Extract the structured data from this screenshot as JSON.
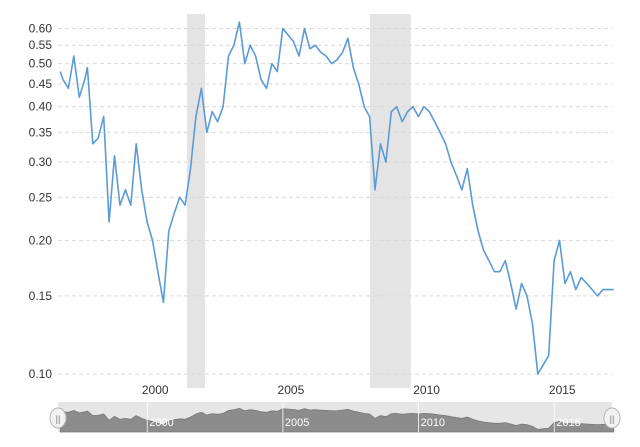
{
  "chart_data": {
    "type": "line",
    "title": "",
    "xlabel": "",
    "ylabel": "",
    "y_scale": "log",
    "ylim": [
      0.095,
      0.64
    ],
    "xlim": [
      "1996-06",
      "2016-11"
    ],
    "grid": "horizontal dashed",
    "legend": "none",
    "y_ticks": [
      "0.60",
      "0.55",
      "0.50",
      "0.45",
      "0.40",
      "0.35",
      "0.30",
      "0.25",
      "0.20",
      "0.15",
      "0.10"
    ],
    "y_tick_values": [
      0.6,
      0.55,
      0.5,
      0.45,
      0.4,
      0.35,
      0.3,
      0.25,
      0.2,
      0.15,
      0.1
    ],
    "x_ticks": [
      "2000",
      "2005",
      "2010",
      "2015"
    ],
    "x_tick_values": [
      2000,
      2005,
      2010,
      2015
    ],
    "recession_bands": [
      {
        "start": "2001-03",
        "end": "2001-11"
      },
      {
        "start": "2007-12",
        "end": "2009-06"
      }
    ],
    "colors": {
      "line": "#5b9bd5",
      "recession": "#e4e4e4",
      "grid": "#d9d9d9",
      "navigator_fill": "#8c8c8c",
      "navigator_bg": "#e6e6e6"
    },
    "series": [
      {
        "x": [
          1996.5,
          1996.6,
          1996.8,
          1997.0,
          1997.2,
          1997.4,
          1997.5,
          1997.7,
          1997.9,
          1998.1,
          1998.3,
          1998.5,
          1998.7,
          1998.9,
          1999.1,
          1999.3,
          1999.5,
          1999.7,
          1999.9,
          2000.1,
          2000.3,
          2000.5,
          2000.7,
          2000.9,
          2001.1,
          2001.3,
          2001.5,
          2001.7,
          2001.9,
          2002.1,
          2002.3,
          2002.5,
          2002.7,
          2002.9,
          2003.1,
          2003.3,
          2003.5,
          2003.7,
          2003.9,
          2004.1,
          2004.3,
          2004.5,
          2004.7,
          2004.9,
          2005.1,
          2005.3,
          2005.5,
          2005.7,
          2005.9,
          2006.1,
          2006.3,
          2006.5,
          2006.7,
          2006.9,
          2007.1,
          2007.3,
          2007.5,
          2007.7,
          2007.9,
          2008.1,
          2008.3,
          2008.5,
          2008.7,
          2008.9,
          2009.1,
          2009.3,
          2009.5,
          2009.7,
          2009.9,
          2010.1,
          2010.3,
          2010.5,
          2010.7,
          2010.9,
          2011.1,
          2011.3,
          2011.5,
          2011.7,
          2011.9,
          2012.1,
          2012.3,
          2012.5,
          2012.7,
          2012.9,
          2013.1,
          2013.3,
          2013.5,
          2013.7,
          2013.9,
          2014.1,
          2014.3,
          2014.5,
          2014.7,
          2014.9,
          2015.1,
          2015.3,
          2015.5,
          2015.7,
          2015.9,
          2016.1,
          2016.3,
          2016.5,
          2016.7,
          2016.9
        ],
        "y": [
          0.48,
          0.46,
          0.44,
          0.52,
          0.42,
          0.46,
          0.49,
          0.33,
          0.34,
          0.38,
          0.22,
          0.31,
          0.24,
          0.26,
          0.24,
          0.33,
          0.26,
          0.22,
          0.2,
          0.17,
          0.145,
          0.21,
          0.23,
          0.25,
          0.24,
          0.29,
          0.38,
          0.44,
          0.35,
          0.39,
          0.37,
          0.4,
          0.52,
          0.55,
          0.62,
          0.5,
          0.55,
          0.52,
          0.46,
          0.44,
          0.5,
          0.48,
          0.6,
          0.58,
          0.56,
          0.52,
          0.6,
          0.54,
          0.55,
          0.53,
          0.52,
          0.5,
          0.51,
          0.53,
          0.57,
          0.49,
          0.45,
          0.4,
          0.38,
          0.26,
          0.33,
          0.3,
          0.39,
          0.4,
          0.37,
          0.39,
          0.4,
          0.38,
          0.4,
          0.39,
          0.37,
          0.35,
          0.33,
          0.3,
          0.28,
          0.26,
          0.29,
          0.24,
          0.21,
          0.19,
          0.18,
          0.17,
          0.17,
          0.18,
          0.16,
          0.14,
          0.16,
          0.15,
          0.13,
          0.1,
          0.105,
          0.11,
          0.18,
          0.2,
          0.16,
          0.17,
          0.155,
          0.165,
          0.16,
          0.155,
          0.15,
          0.155,
          0.155,
          0.155
        ]
      }
    ]
  },
  "navigator": {
    "ticks": [
      "2000",
      "2005",
      "2010",
      "2015"
    ],
    "left_handle": "||",
    "right_handle": "||"
  }
}
